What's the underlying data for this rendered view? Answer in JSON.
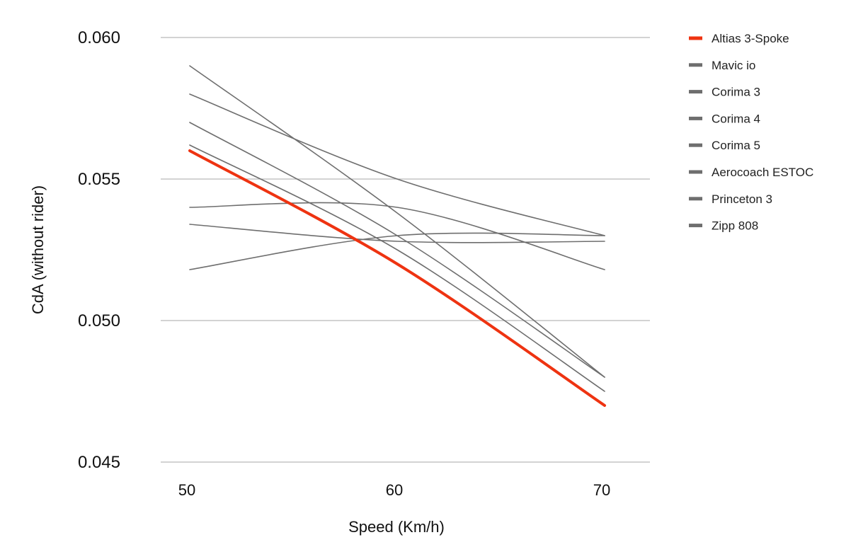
{
  "chart_data": {
    "type": "line",
    "title": "",
    "xlabel": "Speed (Km/h)",
    "ylabel": "CdA (without rider)",
    "x": [
      50,
      60,
      70
    ],
    "xticks": [
      "50",
      "60",
      "70"
    ],
    "yticks": [
      "0.045",
      "0.050",
      "0.055",
      "0.060"
    ],
    "xlim": [
      50,
      70
    ],
    "ylim": [
      0.045,
      0.06
    ],
    "grid": "horizontal",
    "legend_position": "right",
    "highlight_color": "#ee3311",
    "default_color": "#6e6e6e",
    "series": [
      {
        "name": "Altias 3-Spoke",
        "values": [
          0.056,
          0.052,
          0.047
        ],
        "highlight": true
      },
      {
        "name": "Mavic io",
        "values": [
          0.059,
          0.0538,
          0.048
        ]
      },
      {
        "name": "Corima 3",
        "values": [
          0.058,
          0.055,
          0.053
        ]
      },
      {
        "name": "Corima 4",
        "values": [
          0.057,
          0.053,
          0.048
        ]
      },
      {
        "name": "Corima 5",
        "values": [
          0.0562,
          0.0525,
          0.0475
        ]
      },
      {
        "name": "Aerocoach ESTOC",
        "values": [
          0.054,
          0.054,
          0.0518
        ]
      },
      {
        "name": "Princeton 3",
        "values": [
          0.0534,
          0.0528,
          0.0528
        ]
      },
      {
        "name": "Zipp 808",
        "values": [
          0.0518,
          0.053,
          0.053
        ]
      }
    ]
  }
}
